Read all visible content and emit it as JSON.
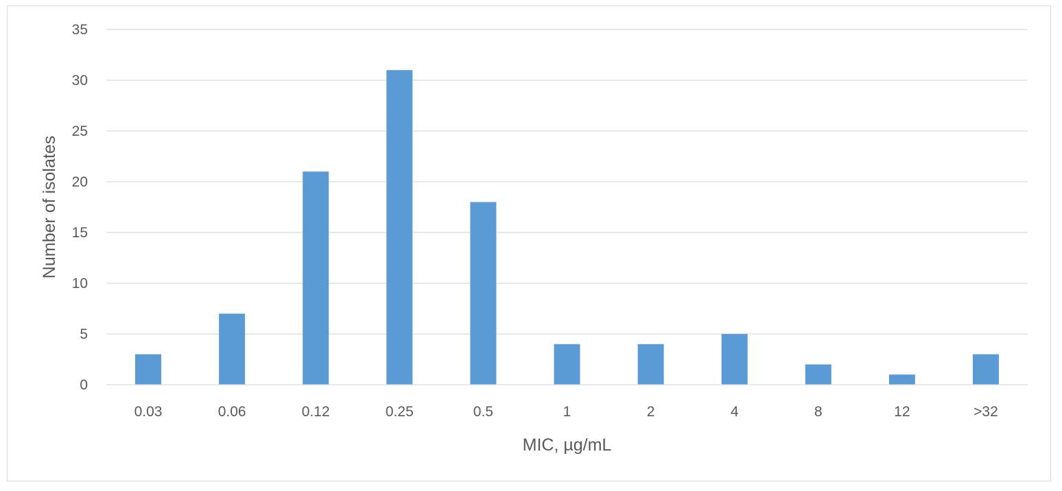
{
  "chart_data": {
    "type": "bar",
    "title": "",
    "xlabel": "MIC, µg/mL",
    "ylabel": "Number of isolates",
    "categories": [
      "0.03",
      "0.06",
      "0.12",
      "0.25",
      "0.5",
      "1",
      "2",
      "4",
      "8",
      "12",
      ">32"
    ],
    "values": [
      3,
      7,
      21,
      31,
      18,
      4,
      4,
      5,
      2,
      1,
      3
    ],
    "ylim": [
      0,
      35
    ],
    "yticks": [
      0,
      5,
      10,
      15,
      20,
      25,
      30,
      35
    ],
    "grid": true,
    "legend": "none",
    "bar_color": "#5b9bd5"
  }
}
